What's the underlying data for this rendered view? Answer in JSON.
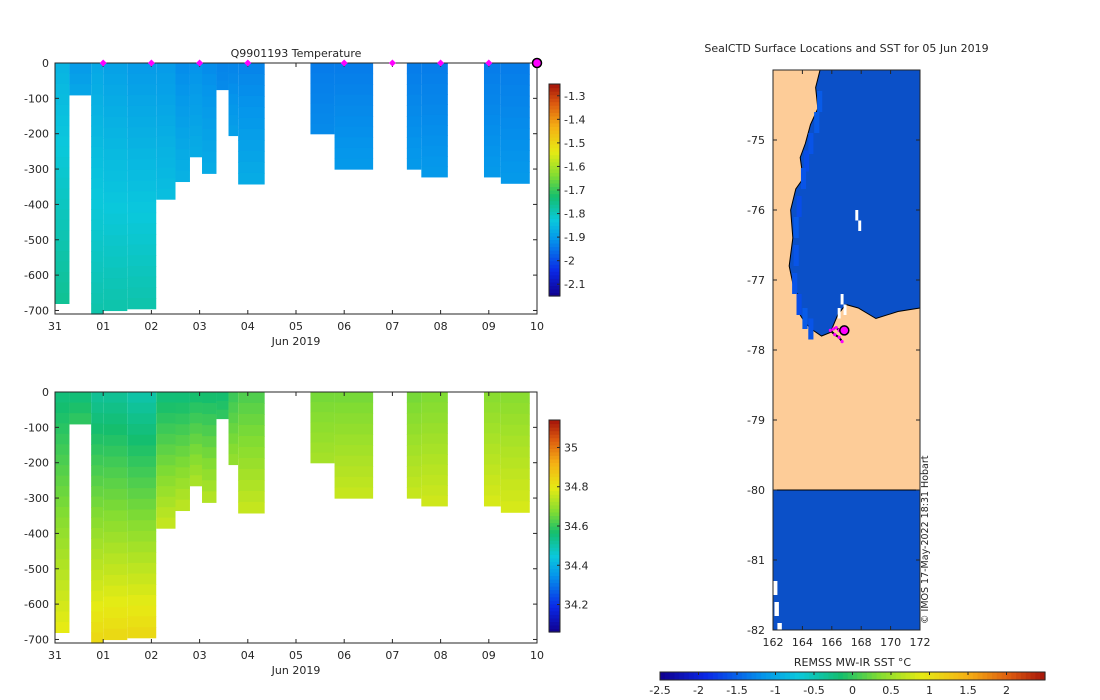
{
  "colors": {
    "land": "#fdcc98",
    "ocean_ice": "#0b50c8",
    "marker": "#ff00ff",
    "axis": "#262626"
  },
  "chart_data": [
    {
      "id": "temperature",
      "type": "heatmap",
      "title": "Q9901193  Temperature",
      "xlabel": "Jun 2019",
      "ylabel": "",
      "x_ticks": [
        "31",
        "01",
        "02",
        "03",
        "04",
        "05",
        "06",
        "07",
        "08",
        "09",
        "10"
      ],
      "x_tick_values": [
        0,
        1,
        2,
        3,
        4,
        5,
        6,
        7,
        8,
        9,
        10
      ],
      "xlim": [
        0,
        10
      ],
      "ylim": [
        -710,
        0
      ],
      "y_ticks": [
        0,
        -100,
        -200,
        -300,
        -400,
        -500,
        -600,
        -700
      ],
      "color_range": [
        -2.15,
        -1.25
      ],
      "colorbar_ticks": [
        -1.3,
        -1.4,
        -1.5,
        -1.6,
        -1.7,
        -1.8,
        -1.9,
        -2,
        -2.1
      ],
      "surface_markers_x": [
        1.0,
        2.0,
        3.0,
        4.0,
        6.0,
        7.0,
        8.0,
        9.0
      ],
      "last_profile_x": 10.0,
      "profiles": [
        {
          "x0": 0.0,
          "x1": 0.3,
          "depth": -680,
          "surface": -1.86,
          "deep": -1.76
        },
        {
          "x0": 0.3,
          "x1": 0.75,
          "depth": -90,
          "surface": -1.9,
          "deep": -1.88
        },
        {
          "x0": 0.75,
          "x1": 1.0,
          "depth": -710,
          "surface": -1.88,
          "deep": -1.78
        },
        {
          "x0": 1.0,
          "x1": 1.5,
          "depth": -700,
          "surface": -1.89,
          "deep": -1.78
        },
        {
          "x0": 1.5,
          "x1": 2.1,
          "depth": -695,
          "surface": -1.9,
          "deep": -1.78
        },
        {
          "x0": 2.1,
          "x1": 2.5,
          "depth": -385,
          "surface": -1.9,
          "deep": -1.84
        },
        {
          "x0": 2.5,
          "x1": 2.8,
          "depth": -335,
          "surface": -1.92,
          "deep": -1.86
        },
        {
          "x0": 2.8,
          "x1": 3.05,
          "depth": -265,
          "surface": -1.91,
          "deep": -1.87
        },
        {
          "x0": 3.05,
          "x1": 3.35,
          "depth": -312,
          "surface": -1.92,
          "deep": -1.87
        },
        {
          "x0": 3.35,
          "x1": 3.6,
          "depth": -75,
          "surface": -1.93,
          "deep": -1.92
        },
        {
          "x0": 3.6,
          "x1": 3.8,
          "depth": -205,
          "surface": -1.93,
          "deep": -1.89
        },
        {
          "x0": 3.8,
          "x1": 4.35,
          "depth": -342,
          "surface": -1.93,
          "deep": -1.87
        },
        {
          "x0": 5.3,
          "x1": 5.8,
          "depth": -200,
          "surface": -1.94,
          "deep": -1.92
        },
        {
          "x0": 5.8,
          "x1": 6.6,
          "depth": -300,
          "surface": -1.94,
          "deep": -1.9
        },
        {
          "x0": 7.3,
          "x1": 7.6,
          "depth": -300,
          "surface": -1.94,
          "deep": -1.9
        },
        {
          "x0": 7.6,
          "x1": 8.15,
          "depth": -322,
          "surface": -1.94,
          "deep": -1.9
        },
        {
          "x0": 8.9,
          "x1": 9.25,
          "depth": -322,
          "surface": -1.94,
          "deep": -1.9
        },
        {
          "x0": 9.25,
          "x1": 9.85,
          "depth": -340,
          "surface": -1.94,
          "deep": -1.9
        }
      ]
    },
    {
      "id": "salinity",
      "type": "heatmap",
      "title": "",
      "xlabel": "Jun 2019",
      "ylabel": "",
      "x_ticks": [
        "31",
        "01",
        "02",
        "03",
        "04",
        "05",
        "06",
        "07",
        "08",
        "09",
        "10"
      ],
      "x_tick_values": [
        0,
        1,
        2,
        3,
        4,
        5,
        6,
        7,
        8,
        9,
        10
      ],
      "xlim": [
        0,
        10
      ],
      "ylim": [
        -710,
        0
      ],
      "y_ticks": [
        0,
        -100,
        -200,
        -300,
        -400,
        -500,
        -600,
        -700
      ],
      "color_range": [
        34.06,
        35.14
      ],
      "colorbar_ticks": [
        35,
        34.8,
        34.6,
        34.4,
        34.2
      ],
      "profiles": [
        {
          "x0": 0.0,
          "x1": 0.3,
          "depth": -680,
          "surface": 34.55,
          "deep": 34.8
        },
        {
          "x0": 0.3,
          "x1": 0.75,
          "depth": -90,
          "surface": 34.55,
          "deep": 34.6
        },
        {
          "x0": 0.75,
          "x1": 1.0,
          "depth": -710,
          "surface": 34.52,
          "deep": 34.84
        },
        {
          "x0": 1.0,
          "x1": 1.5,
          "depth": -700,
          "surface": 34.52,
          "deep": 34.84
        },
        {
          "x0": 1.5,
          "x1": 2.1,
          "depth": -695,
          "surface": 34.5,
          "deep": 34.84
        },
        {
          "x0": 2.1,
          "x1": 2.5,
          "depth": -385,
          "surface": 34.55,
          "deep": 34.76
        },
        {
          "x0": 2.5,
          "x1": 2.8,
          "depth": -335,
          "surface": 34.55,
          "deep": 34.75
        },
        {
          "x0": 2.8,
          "x1": 3.05,
          "depth": -265,
          "surface": 34.56,
          "deep": 34.73
        },
        {
          "x0": 3.05,
          "x1": 3.35,
          "depth": -312,
          "surface": 34.56,
          "deep": 34.74
        },
        {
          "x0": 3.35,
          "x1": 3.6,
          "depth": -75,
          "surface": 34.56,
          "deep": 34.6
        },
        {
          "x0": 3.6,
          "x1": 3.8,
          "depth": -205,
          "surface": 34.6,
          "deep": 34.7
        },
        {
          "x0": 3.8,
          "x1": 4.35,
          "depth": -342,
          "surface": 34.62,
          "deep": 34.76
        },
        {
          "x0": 5.3,
          "x1": 5.8,
          "depth": -200,
          "surface": 34.66,
          "deep": 34.72
        },
        {
          "x0": 5.8,
          "x1": 6.6,
          "depth": -300,
          "surface": 34.66,
          "deep": 34.76
        },
        {
          "x0": 7.3,
          "x1": 7.6,
          "depth": -300,
          "surface": 34.66,
          "deep": 34.76
        },
        {
          "x0": 7.6,
          "x1": 8.15,
          "depth": -322,
          "surface": 34.67,
          "deep": 34.77
        },
        {
          "x0": 8.9,
          "x1": 9.25,
          "depth": -322,
          "surface": 34.68,
          "deep": 34.78
        },
        {
          "x0": 9.25,
          "x1": 9.85,
          "depth": -340,
          "surface": 34.68,
          "deep": 34.78
        }
      ]
    },
    {
      "id": "map",
      "type": "heatmap",
      "title": "SealCTD Surface Locations and SST for 05 Jun 2019",
      "x_ticks": [
        "162",
        "164",
        "166",
        "168",
        "170",
        "172"
      ],
      "x_tick_values": [
        162,
        164,
        166,
        168,
        170,
        172
      ],
      "y_ticks": [
        "-75",
        "-76",
        "-77",
        "-78",
        "-79",
        "-80",
        "-81",
        "-82"
      ],
      "y_tick_values": [
        -75,
        -76,
        -77,
        -78,
        -79,
        -80,
        -81,
        -82
      ],
      "xlim": [
        162,
        172
      ],
      "ylim": [
        -82,
        -74
      ],
      "color_range": [
        -2.5,
        2.5
      ],
      "colorbar_label": "REMSS MW-IR SST °C",
      "colorbar_ticks": [
        "-2.5",
        "-2",
        "-1.5",
        "-1",
        "-0.5",
        "0",
        "0.5",
        "1",
        "1.5",
        "2"
      ],
      "colorbar_tick_values": [
        -2.5,
        -2,
        -1.5,
        -1,
        -0.5,
        0,
        0.5,
        1,
        1.5,
        2
      ],
      "ocean_sst": -1.8,
      "ross_sea_coast": [
        [
          162,
          -74.0
        ],
        [
          165.2,
          -74.0
        ],
        [
          164.9,
          -74.25
        ],
        [
          165.05,
          -74.55
        ],
        [
          164.55,
          -74.78
        ],
        [
          164.2,
          -75.05
        ],
        [
          163.85,
          -75.25
        ],
        [
          164.05,
          -75.55
        ],
        [
          163.55,
          -75.7
        ],
        [
          163.2,
          -76.0
        ],
        [
          163.35,
          -76.4
        ],
        [
          163.1,
          -76.8
        ],
        [
          163.45,
          -77.15
        ],
        [
          163.9,
          -77.25
        ],
        [
          163.85,
          -77.5
        ],
        [
          164.15,
          -77.6
        ],
        [
          164.6,
          -77.7
        ],
        [
          165.3,
          -77.8
        ],
        [
          165.9,
          -77.75
        ],
        [
          166.4,
          -77.5
        ],
        [
          166.95,
          -77.35
        ],
        [
          167.8,
          -77.4
        ],
        [
          169.0,
          -77.55
        ],
        [
          170.5,
          -77.45
        ],
        [
          172,
          -77.4
        ],
        [
          172,
          -80.0
        ],
        [
          162,
          -80.0
        ]
      ],
      "ice_tongue_cells": [
        [
          167.6,
          -76.0
        ],
        [
          167.8,
          -76.15
        ]
      ],
      "ross_island_cells": [
        [
          166.6,
          -77.2
        ],
        [
          166.8,
          -77.35
        ],
        [
          166.4,
          -77.4
        ]
      ],
      "coastal_warm_strip": [
        [
          165.0,
          -74.3,
          -1.55
        ],
        [
          164.8,
          -74.6,
          -1.55
        ],
        [
          164.4,
          -74.9,
          -1.6
        ],
        [
          164.1,
          -75.15,
          -1.65
        ],
        [
          163.9,
          -75.4,
          -1.6
        ],
        [
          163.6,
          -75.8,
          -1.65
        ],
        [
          163.4,
          -76.1,
          -1.55
        ],
        [
          163.4,
          -76.5,
          -1.6
        ],
        [
          163.3,
          -76.9,
          -1.6
        ],
        [
          163.6,
          -77.2,
          -1.65
        ],
        [
          164.0,
          -77.4,
          -1.55
        ],
        [
          164.4,
          -77.55,
          -1.6
        ]
      ],
      "track": [
        [
          166.7,
          -77.7
        ],
        [
          166.5,
          -77.72
        ],
        [
          166.3,
          -77.68
        ],
        [
          166.1,
          -77.7
        ],
        [
          165.9,
          -77.72
        ],
        [
          166.2,
          -77.78
        ],
        [
          166.5,
          -77.82
        ],
        [
          166.7,
          -77.88
        ]
      ],
      "current_location": [
        166.85,
        -77.72
      ],
      "watermark": "© IMOS 17-May-2022 18:31 Hobart"
    }
  ]
}
